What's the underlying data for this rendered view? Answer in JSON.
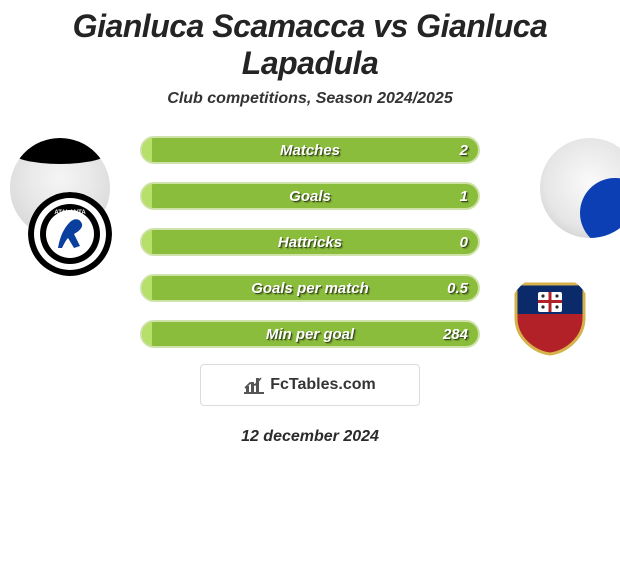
{
  "title": "Gianluca Scamacca vs Gianluca Lapadula",
  "subtitle": "Club competitions, Season 2024/2025",
  "date_line": "12 december 2024",
  "brand": "FcTables.com",
  "colors": {
    "bar_bg": "#8bbd3c",
    "bar_fill": "#b6e06a",
    "bar_border": "#cfe2a8",
    "text_dark": "#242424"
  },
  "left_club": {
    "name": "Atalanta",
    "badge": {
      "outer": "#000000",
      "ring": "#ffffff",
      "inner_bg": "#ffffff",
      "accent": "#0a3f9e"
    }
  },
  "right_club": {
    "name": "Cagliari",
    "badge": {
      "top": "#0a2a6a",
      "bottom": "#b22028",
      "cross": "#ffffff",
      "inner": "#ffffff"
    }
  },
  "stats": [
    {
      "label": "Matches",
      "value": "2",
      "fill_pct": 3
    },
    {
      "label": "Goals",
      "value": "1",
      "fill_pct": 3
    },
    {
      "label": "Hattricks",
      "value": "0",
      "fill_pct": 3
    },
    {
      "label": "Goals per match",
      "value": "0.5",
      "fill_pct": 3
    },
    {
      "label": "Min per goal",
      "value": "284",
      "fill_pct": 3
    }
  ]
}
